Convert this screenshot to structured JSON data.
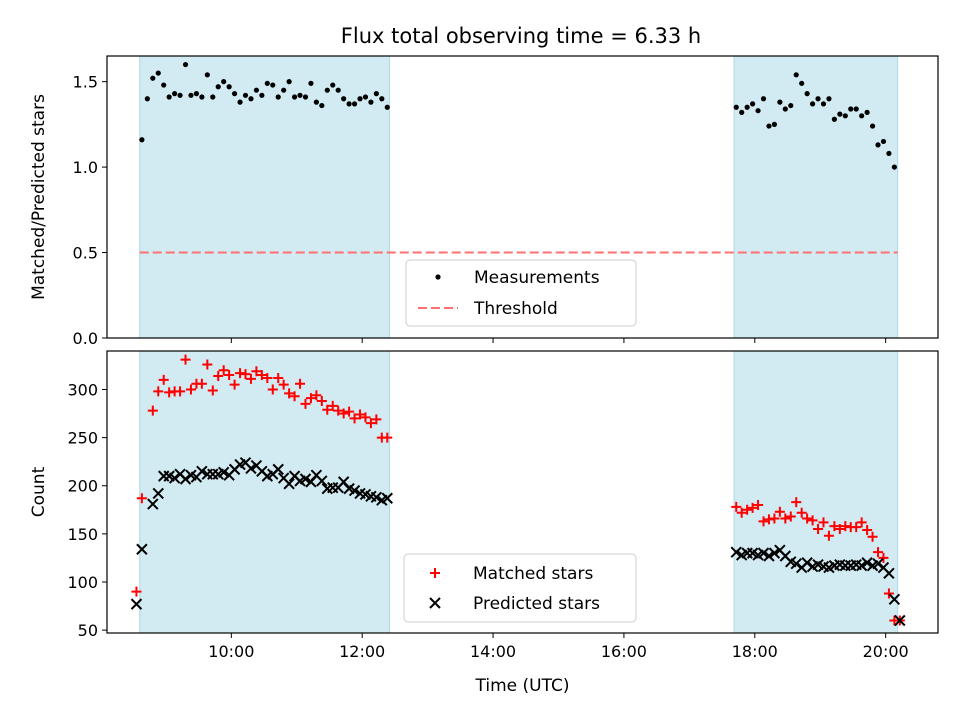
{
  "figure": {
    "title": "Flux total observing time = 6.33 h",
    "xlabel": "Time (UTC)"
  },
  "colors": {
    "shade": "#add8e6",
    "threshold": "#ff7070",
    "matched": "#ff0000",
    "predicted": "#000000",
    "measurement": "#000000"
  },
  "chart_data": [
    {
      "type": "scatter",
      "panel": "top",
      "ylabel": "Matched/Predicted stars",
      "xlim": [
        "08:06",
        "20:48"
      ],
      "ylim": [
        0,
        1.65
      ],
      "yticks": [
        0.0,
        0.5,
        1.0,
        1.5
      ],
      "ytick_labels": [
        "0.0",
        "0.5",
        "1.0",
        "1.5"
      ],
      "xticks": [
        "10:00",
        "12:00",
        "14:00",
        "16:00",
        "18:00",
        "20:00"
      ],
      "xtick_labels_shown": false,
      "shaded_spans": [
        [
          "08:36",
          "12:25"
        ],
        [
          "17:41",
          "20:11"
        ]
      ],
      "legend": {
        "placement": "bottom-center",
        "entries": [
          "Measurements",
          "Threshold"
        ]
      },
      "threshold": {
        "name": "Threshold",
        "value": 0.5,
        "style": "dashed",
        "x_range": [
          "08:36",
          "20:11"
        ]
      },
      "series": [
        {
          "name": "Measurements",
          "marker": "dot",
          "x": [
            "08:38",
            "08:43",
            "08:48",
            "08:53",
            "08:58",
            "09:03",
            "09:08",
            "09:13",
            "09:18",
            "09:23",
            "09:28",
            "09:33",
            "09:38",
            "09:43",
            "09:48",
            "09:53",
            "09:58",
            "10:03",
            "10:08",
            "10:13",
            "10:18",
            "10:23",
            "10:28",
            "10:33",
            "10:38",
            "10:43",
            "10:48",
            "10:53",
            "10:58",
            "11:03",
            "11:08",
            "11:13",
            "11:18",
            "11:23",
            "11:28",
            "11:33",
            "11:38",
            "11:43",
            "11:48",
            "11:53",
            "11:58",
            "12:03",
            "12:08",
            "12:13",
            "12:18",
            "12:23",
            "17:43",
            "17:48",
            "17:53",
            "17:58",
            "18:03",
            "18:08",
            "18:13",
            "18:18",
            "18:23",
            "18:28",
            "18:33",
            "18:38",
            "18:43",
            "18:48",
            "18:53",
            "18:58",
            "19:03",
            "19:08",
            "19:13",
            "19:18",
            "19:23",
            "19:28",
            "19:33",
            "19:38",
            "19:43",
            "19:48",
            "19:53",
            "19:58",
            "20:03",
            "20:08"
          ],
          "y": [
            1.16,
            1.4,
            1.52,
            1.55,
            1.48,
            1.41,
            1.43,
            1.42,
            1.6,
            1.42,
            1.43,
            1.41,
            1.54,
            1.41,
            1.47,
            1.5,
            1.47,
            1.43,
            1.38,
            1.42,
            1.4,
            1.45,
            1.42,
            1.49,
            1.48,
            1.41,
            1.45,
            1.5,
            1.41,
            1.42,
            1.41,
            1.49,
            1.38,
            1.36,
            1.45,
            1.48,
            1.45,
            1.4,
            1.37,
            1.37,
            1.4,
            1.41,
            1.38,
            1.43,
            1.4,
            1.35,
            1.35,
            1.32,
            1.35,
            1.37,
            1.33,
            1.4,
            1.24,
            1.25,
            1.38,
            1.34,
            1.36,
            1.54,
            1.49,
            1.43,
            1.37,
            1.4,
            1.37,
            1.4,
            1.28,
            1.31,
            1.3,
            1.34,
            1.34,
            1.3,
            1.32,
            1.24,
            1.13,
            1.15,
            1.08,
            1.0
          ]
        }
      ]
    },
    {
      "type": "scatter",
      "panel": "bottom",
      "ylabel": "Count",
      "xlabel": "Time (UTC)",
      "xlim": [
        "08:06",
        "20:48"
      ],
      "ylim": [
        47,
        340
      ],
      "yticks": [
        50,
        100,
        150,
        200,
        250,
        300
      ],
      "ytick_labels": [
        "50",
        "100",
        "150",
        "200",
        "250",
        "300"
      ],
      "xticks": [
        "10:00",
        "12:00",
        "14:00",
        "16:00",
        "18:00",
        "20:00"
      ],
      "xtick_labels": [
        "10:00",
        "12:00",
        "14:00",
        "16:00",
        "18:00",
        "20:00"
      ],
      "shaded_spans": [
        [
          "08:36",
          "12:25"
        ],
        [
          "17:41",
          "20:11"
        ]
      ],
      "legend": {
        "placement": "bottom-center",
        "entries": [
          "Matched stars",
          "Predicted stars"
        ]
      },
      "series": [
        {
          "name": "Matched stars",
          "marker": "plus",
          "x": [
            "08:33",
            "08:38",
            "08:48",
            "08:53",
            "08:58",
            "09:03",
            "09:08",
            "09:13",
            "09:18",
            "09:23",
            "09:28",
            "09:33",
            "09:38",
            "09:43",
            "09:48",
            "09:53",
            "09:58",
            "10:03",
            "10:08",
            "10:13",
            "10:18",
            "10:23",
            "10:28",
            "10:33",
            "10:38",
            "10:43",
            "10:48",
            "10:53",
            "10:58",
            "11:03",
            "11:08",
            "11:13",
            "11:18",
            "11:23",
            "11:28",
            "11:33",
            "11:38",
            "11:43",
            "11:48",
            "11:53",
            "11:58",
            "12:03",
            "12:08",
            "12:13",
            "12:18",
            "12:23",
            "17:43",
            "17:48",
            "17:53",
            "17:58",
            "18:03",
            "18:08",
            "18:13",
            "18:18",
            "18:23",
            "18:28",
            "18:33",
            "18:38",
            "18:43",
            "18:48",
            "18:53",
            "18:58",
            "19:03",
            "19:08",
            "19:13",
            "19:18",
            "19:23",
            "19:28",
            "19:33",
            "19:38",
            "19:43",
            "19:48",
            "19:53",
            "19:58",
            "20:03",
            "20:08",
            "20:13"
          ],
          "y": [
            90,
            187,
            278,
            298,
            310,
            297,
            298,
            298,
            331,
            300,
            306,
            306,
            326,
            299,
            314,
            320,
            315,
            305,
            317,
            316,
            311,
            319,
            315,
            312,
            300,
            312,
            305,
            296,
            293,
            306,
            285,
            291,
            294,
            288,
            279,
            283,
            278,
            275,
            277,
            270,
            274,
            271,
            265,
            269,
            250,
            250,
            178,
            172,
            175,
            177,
            180,
            163,
            165,
            166,
            173,
            166,
            168,
            183,
            172,
            166,
            164,
            155,
            162,
            148,
            158,
            155,
            158,
            157,
            157,
            162,
            154,
            147,
            131,
            125,
            88,
            60,
            60
          ]
        },
        {
          "name": "Predicted stars",
          "marker": "x",
          "x": [
            "08:33",
            "08:38",
            "08:48",
            "08:53",
            "08:58",
            "09:03",
            "09:08",
            "09:13",
            "09:18",
            "09:23",
            "09:28",
            "09:33",
            "09:38",
            "09:43",
            "09:48",
            "09:53",
            "09:58",
            "10:03",
            "10:08",
            "10:13",
            "10:18",
            "10:23",
            "10:28",
            "10:33",
            "10:38",
            "10:43",
            "10:48",
            "10:53",
            "10:58",
            "11:03",
            "11:08",
            "11:13",
            "11:18",
            "11:23",
            "11:28",
            "11:33",
            "11:38",
            "11:43",
            "11:48",
            "11:53",
            "11:58",
            "12:03",
            "12:08",
            "12:13",
            "12:18",
            "12:23",
            "17:43",
            "17:48",
            "17:53",
            "17:58",
            "18:03",
            "18:08",
            "18:13",
            "18:18",
            "18:23",
            "18:28",
            "18:33",
            "18:38",
            "18:43",
            "18:48",
            "18:53",
            "18:58",
            "19:03",
            "19:08",
            "19:13",
            "19:18",
            "19:23",
            "19:28",
            "19:33",
            "19:38",
            "19:43",
            "19:48",
            "19:53",
            "19:58",
            "20:03",
            "20:08",
            "20:13"
          ],
          "y": [
            77,
            134,
            181,
            192,
            210,
            210,
            208,
            212,
            207,
            211,
            209,
            215,
            212,
            212,
            212,
            214,
            211,
            217,
            222,
            224,
            218,
            221,
            215,
            210,
            212,
            217,
            208,
            202,
            210,
            205,
            207,
            204,
            211,
            205,
            197,
            198,
            198,
            204,
            197,
            195,
            192,
            191,
            189,
            188,
            185,
            187,
            131,
            128,
            130,
            130,
            128,
            130,
            127,
            130,
            133,
            127,
            121,
            119,
            115,
            120,
            116,
            118,
            116,
            115,
            117,
            118,
            117,
            117,
            118,
            117,
            120,
            117,
            119,
            115,
            109,
            82,
            60
          ]
        }
      ]
    }
  ]
}
